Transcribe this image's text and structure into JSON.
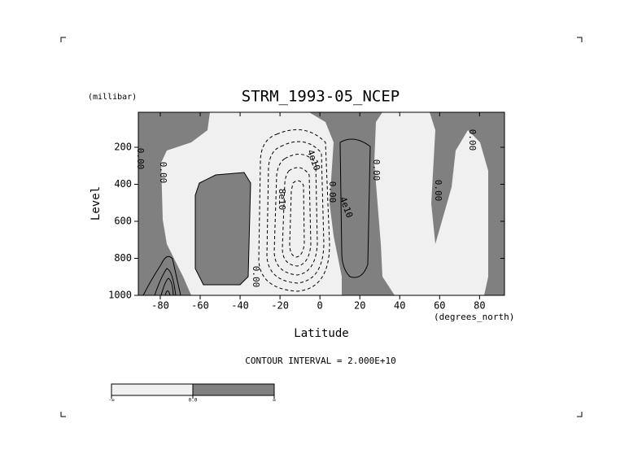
{
  "chart_data": {
    "type": "contour",
    "title": "STRM_1993-05_NCEP",
    "x_label": "Latitude",
    "x_units": "(degrees_north)",
    "y_label": "Level",
    "y_units": "(millibar)",
    "xlim": [
      -91,
      92.5
    ],
    "xticks": [
      -80,
      -60,
      -40,
      -20,
      0,
      20,
      40,
      60,
      80
    ],
    "ylim": [
      1000,
      11
    ],
    "yticks": [
      200,
      400,
      600,
      800,
      1000
    ],
    "contour_labels": [
      "0.00",
      "0.00",
      "0.00",
      "8e10",
      "4e10",
      "0.00",
      "4e10",
      "0.00",
      "0.00",
      "0.00"
    ],
    "contour_interval": "CONTOUR INTERVAL = 2.000E+10",
    "colorbar": {
      "labels": [
        "-∞",
        "0.0",
        "∞"
      ],
      "colors": [
        "#f0f0f0",
        "#808080"
      ]
    }
  }
}
